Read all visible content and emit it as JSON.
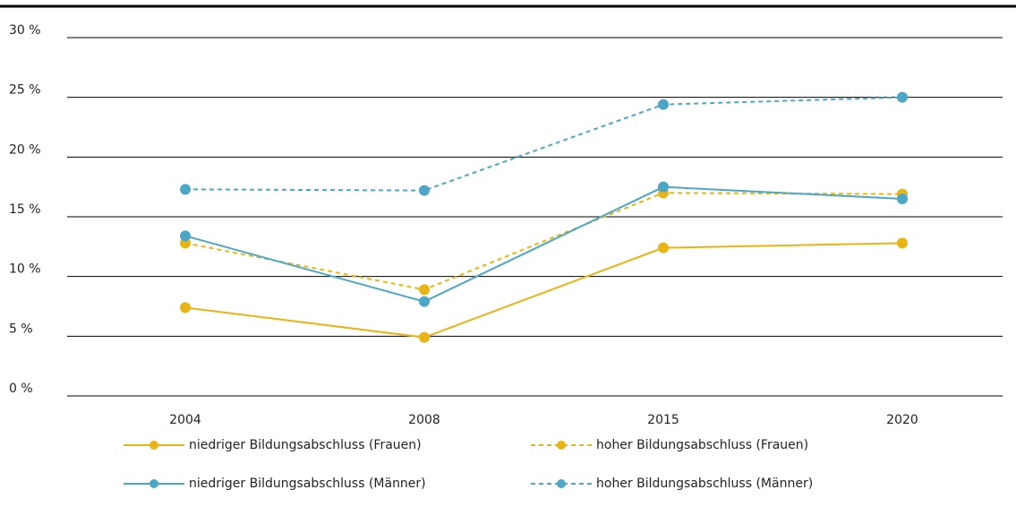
{
  "chart_data": {
    "type": "line",
    "categories": [
      "2004",
      "2008",
      "2015",
      "2020"
    ],
    "series": [
      {
        "name": "niedriger Bildungsabschluss (Frauen)",
        "color": "#e8b416",
        "line_style": "solid",
        "values": [
          7.4,
          4.9,
          12.4,
          12.8
        ]
      },
      {
        "name": "hoher Bildungsabschluss (Frauen)",
        "color": "#e8b416",
        "line_style": "dashed",
        "values": [
          12.8,
          8.9,
          17.0,
          16.9
        ]
      },
      {
        "name": "niedriger Bildungsabschluss (Männer)",
        "color": "#4ca7c7",
        "line_style": "solid",
        "values": [
          13.4,
          7.9,
          17.5,
          16.5
        ]
      },
      {
        "name": "hoher Bildungsabschluss (Männer)",
        "color": "#4ca7c7",
        "line_style": "dashed",
        "values": [
          17.3,
          17.2,
          24.4,
          25.0
        ]
      }
    ],
    "ylim": [
      0,
      30
    ],
    "yticks": [
      {
        "value": 0,
        "label": "0 %"
      },
      {
        "value": 5,
        "label": "5 %"
      },
      {
        "value": 10,
        "label": "10 %"
      },
      {
        "value": 15,
        "label": "15 %"
      },
      {
        "value": 20,
        "label": "20 %"
      },
      {
        "value": 25,
        "label": "25 %"
      },
      {
        "value": 30,
        "label": "30 %"
      }
    ],
    "grid": true
  }
}
